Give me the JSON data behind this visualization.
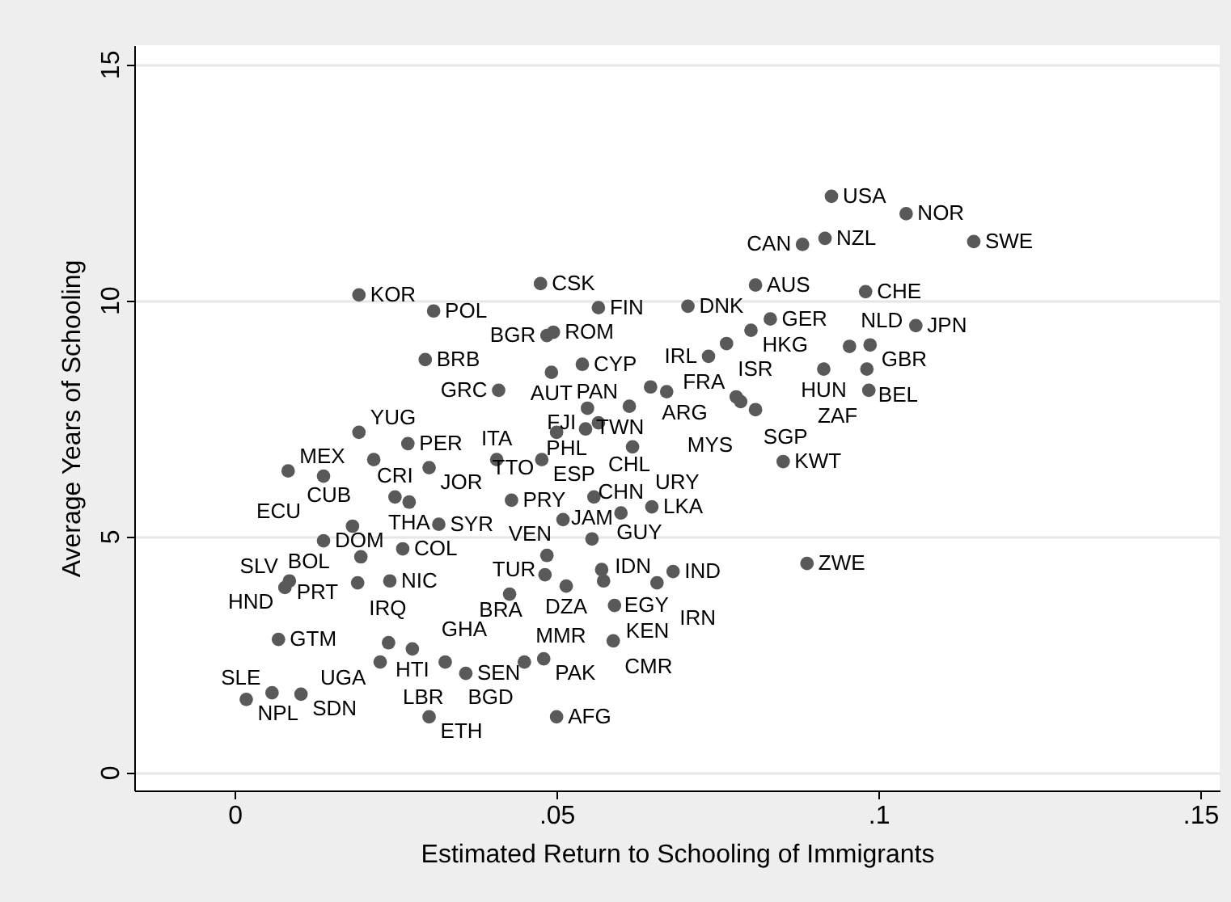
{
  "chart_data": {
    "type": "scatter",
    "xlabel": "Estimated Return to Schooling of Immigrants",
    "ylabel": "Average Years of Schooling",
    "xlim": [
      -0.0156,
      0.153
    ],
    "ylim": [
      -0.39,
      15.4
    ],
    "xticks": [
      {
        "value": 0,
        "label": "0"
      },
      {
        "value": 0.05,
        "label": ".05"
      },
      {
        "value": 0.1,
        "label": ".1"
      },
      {
        "value": 0.15,
        "label": ".15"
      }
    ],
    "yticks": [
      0,
      5,
      10,
      15
    ],
    "grid": "y",
    "legend": false,
    "marker": "circle",
    "series": [
      {
        "color": "#595959",
        "x": [
          0.0927,
          0.1043,
          0.0917,
          0.0882,
          0.1148,
          0.0475,
          0.0809,
          0.098,
          0.0193,
          0.0309,
          0.0565,
          0.0704,
          0.0832,
          0.1058,
          0.0802,
          0.0495,
          0.0485,
          0.0764,
          0.0987,
          0.0955,
          0.0736,
          0.0296,
          0.054,
          0.0915,
          0.0982,
          0.0492,
          0.0985,
          0.041,
          0.0646,
          0.0671,
          0.0779,
          0.0786,
          0.0809,
          0.0613,
          0.0548,
          0.0565,
          0.0545,
          0.05,
          0.0618,
          0.0852,
          0.0193,
          0.0269,
          0.0216,
          0.0302,
          0.0407,
          0.0477,
          0.0083,
          0.0138,
          0.0249,
          0.0271,
          0.043,
          0.0558,
          0.0648,
          0.06,
          0.051,
          0.0183,
          0.0317,
          0.0555,
          0.0138,
          0.0261,
          0.0196,
          0.0485,
          0.0889,
          0.0482,
          0.057,
          0.0515,
          0.0573,
          0.0681,
          0.0656,
          0.059,
          0.0085,
          0.0078,
          0.0191,
          0.0241,
          0.0427,
          0.0068,
          0.0239,
          0.0276,
          0.0226,
          0.0327,
          0.0359,
          0.045,
          0.048,
          0.0588,
          0.0018,
          0.0058,
          0.0103,
          0.0302,
          0.05
        ],
        "values": [
          12.2,
          11.83,
          11.31,
          11.18,
          11.24,
          10.35,
          10.32,
          10.18,
          10.11,
          9.77,
          9.84,
          9.87,
          9.6,
          9.46,
          9.36,
          9.32,
          9.25,
          9.08,
          9.05,
          9.02,
          8.81,
          8.74,
          8.64,
          8.54,
          8.54,
          8.47,
          8.09,
          8.09,
          8.16,
          8.06,
          7.95,
          7.85,
          7.68,
          7.75,
          7.71,
          7.4,
          7.27,
          7.2,
          6.89,
          6.58,
          7.2,
          6.96,
          6.62,
          6.45,
          6.62,
          6.62,
          6.38,
          6.27,
          5.83,
          5.72,
          5.76,
          5.83,
          5.62,
          5.49,
          5.35,
          5.21,
          5.25,
          4.94,
          4.9,
          4.73,
          4.56,
          4.59,
          4.42,
          4.18,
          4.29,
          3.94,
          4.05,
          4.25,
          4.01,
          3.53,
          4.05,
          3.91,
          4.01,
          4.05,
          3.77,
          2.81,
          2.74,
          2.61,
          2.33,
          2.33,
          2.09,
          2.33,
          2.4,
          2.78,
          1.54,
          1.68,
          1.65,
          1.17,
          1.17
        ]
      }
    ],
    "annotations": [
      {
        "text": "USA",
        "x": 0.0927,
        "y": 12.2
      },
      {
        "text": "NOR",
        "x": 0.1043,
        "y": 11.83
      },
      {
        "text": "NZL",
        "x": 0.0917,
        "y": 11.31
      },
      {
        "text": "CAN",
        "x": 0.0882,
        "y": 11.18
      },
      {
        "text": "SWE",
        "x": 0.1148,
        "y": 11.24
      },
      {
        "text": "CSK",
        "x": 0.0475,
        "y": 10.35
      },
      {
        "text": "AUS",
        "x": 0.0809,
        "y": 10.32
      },
      {
        "text": "CHE",
        "x": 0.098,
        "y": 10.18
      },
      {
        "text": "KOR",
        "x": 0.0193,
        "y": 10.11
      },
      {
        "text": "POL",
        "x": 0.0309,
        "y": 9.77
      },
      {
        "text": "FIN",
        "x": 0.0565,
        "y": 9.84
      },
      {
        "text": "DNK",
        "x": 0.0704,
        "y": 9.87
      },
      {
        "text": "GER",
        "x": 0.0832,
        "y": 9.6
      },
      {
        "text": "JPN",
        "x": 0.1058,
        "y": 9.46
      },
      {
        "text": "HKG",
        "x": 0.0802,
        "y": 9.36
      },
      {
        "text": "ROM",
        "x": 0.0495,
        "y": 9.32
      },
      {
        "text": "BGR",
        "x": 0.0485,
        "y": 9.25
      },
      {
        "text": "ISR",
        "x": 0.0764,
        "y": 9.08
      },
      {
        "text": "GBR",
        "x": 0.0987,
        "y": 9.05
      },
      {
        "text": "NLD",
        "x": 0.0955,
        "y": 9.02
      },
      {
        "text": "IRL",
        "x": 0.0736,
        "y": 8.81
      },
      {
        "text": "BRB",
        "x": 0.0296,
        "y": 8.74
      },
      {
        "text": "CYP",
        "x": 0.054,
        "y": 8.64
      },
      {
        "text": "HUN",
        "x": 0.0915,
        "y": 8.54
      },
      {
        "text": "BEL",
        "x": 0.0982,
        "y": 8.54
      },
      {
        "text": "AUT",
        "x": 0.0492,
        "y": 8.47
      },
      {
        "text": "ZAF",
        "x": 0.0985,
        "y": 8.09
      },
      {
        "text": "GRC",
        "x": 0.041,
        "y": 8.09
      },
      {
        "text": "ARG",
        "x": 0.0646,
        "y": 8.16
      },
      {
        "text": "TWN",
        "x": 0.0671,
        "y": 8.06
      },
      {
        "text": "FRA",
        "x": 0.0779,
        "y": 7.95
      },
      {
        "text": "SGP",
        "x": 0.0786,
        "y": 7.85
      },
      {
        "text": "MYS",
        "x": 0.0809,
        "y": 7.68
      },
      {
        "text": "PAN",
        "x": 0.0613,
        "y": 7.75
      },
      {
        "text": "FJI",
        "x": 0.0548,
        "y": 7.71
      },
      {
        "text": "PHL",
        "x": 0.0565,
        "y": 7.4
      },
      {
        "text": "CHL",
        "x": 0.0545,
        "y": 7.27
      },
      {
        "text": "TTO",
        "x": 0.05,
        "y": 7.2
      },
      {
        "text": "URY",
        "x": 0.0618,
        "y": 6.89
      },
      {
        "text": "KWT",
        "x": 0.0852,
        "y": 6.58
      },
      {
        "text": "YUG",
        "x": 0.0193,
        "y": 7.2
      },
      {
        "text": "PER",
        "x": 0.0269,
        "y": 6.96
      },
      {
        "text": "CUB",
        "x": 0.0216,
        "y": 6.62
      },
      {
        "text": "JOR",
        "x": 0.0302,
        "y": 6.45
      },
      {
        "text": "ITA",
        "x": 0.0407,
        "y": 6.62
      },
      {
        "text": "ESP",
        "x": 0.0477,
        "y": 6.62
      },
      {
        "text": "MEX",
        "x": 0.0083,
        "y": 6.38
      },
      {
        "text": "ECU",
        "x": 0.0138,
        "y": 6.27
      },
      {
        "text": "CRI",
        "x": 0.0249,
        "y": 5.83
      },
      {
        "text": "THA",
        "x": 0.0271,
        "y": 5.72
      },
      {
        "text": "PRY",
        "x": 0.043,
        "y": 5.76
      },
      {
        "text": "GUY",
        "x": 0.0558,
        "y": 5.83
      },
      {
        "text": "LKA",
        "x": 0.0648,
        "y": 5.62
      },
      {
        "text": "CHN",
        "x": 0.06,
        "y": 5.49
      },
      {
        "text": "VEN",
        "x": 0.051,
        "y": 5.35
      },
      {
        "text": "BOL",
        "x": 0.0183,
        "y": 5.21
      },
      {
        "text": "SYR",
        "x": 0.0317,
        "y": 5.25
      },
      {
        "text": "JAM",
        "x": 0.0555,
        "y": 4.94
      },
      {
        "text": "DOM",
        "x": 0.0138,
        "y": 4.9
      },
      {
        "text": "COL",
        "x": 0.0261,
        "y": 4.73
      },
      {
        "text": "PRT",
        "x": 0.0196,
        "y": 4.56
      },
      {
        "text": "TUR",
        "x": 0.0485,
        "y": 4.59
      },
      {
        "text": "ZWE",
        "x": 0.0889,
        "y": 4.42
      },
      {
        "text": "BRA",
        "x": 0.0482,
        "y": 4.18
      },
      {
        "text": "EGY",
        "x": 0.057,
        "y": 4.29
      },
      {
        "text": "DZA",
        "x": 0.0515,
        "y": 3.94
      },
      {
        "text": "IDN",
        "x": 0.0573,
        "y": 4.05
      },
      {
        "text": "IND",
        "x": 0.0681,
        "y": 4.25
      },
      {
        "text": "IRN",
        "x": 0.0656,
        "y": 4.01
      },
      {
        "text": "KEN",
        "x": 0.059,
        "y": 3.53
      },
      {
        "text": "SLV",
        "x": 0.0085,
        "y": 4.05
      },
      {
        "text": "HND",
        "x": 0.0078,
        "y": 3.91
      },
      {
        "text": "IRQ",
        "x": 0.0191,
        "y": 4.01
      },
      {
        "text": "NIC",
        "x": 0.0241,
        "y": 4.05
      },
      {
        "text": "GHA",
        "x": 0.0427,
        "y": 3.77
      },
      {
        "text": "GTM",
        "x": 0.0068,
        "y": 2.81
      },
      {
        "text": "UGA",
        "x": 0.0239,
        "y": 2.74
      },
      {
        "text": "HTI",
        "x": 0.0276,
        "y": 2.61
      },
      {
        "text": "LBR",
        "x": 0.0226,
        "y": 2.33
      },
      {
        "text": "BGD",
        "x": 0.0327,
        "y": 2.33
      },
      {
        "text": "SEN",
        "x": 0.0359,
        "y": 2.09
      },
      {
        "text": "MMR",
        "x": 0.045,
        "y": 2.33
      },
      {
        "text": "PAK",
        "x": 0.048,
        "y": 2.4
      },
      {
        "text": "CMR",
        "x": 0.0588,
        "y": 2.78
      },
      {
        "text": "NPL",
        "x": 0.0018,
        "y": 1.54
      },
      {
        "text": "SLE",
        "x": 0.0058,
        "y": 1.68
      },
      {
        "text": "SDN",
        "x": 0.0103,
        "y": 1.65
      },
      {
        "text": "ETH",
        "x": 0.0302,
        "y": 1.17
      },
      {
        "text": "AFG",
        "x": 0.05,
        "y": 1.17
      }
    ]
  }
}
